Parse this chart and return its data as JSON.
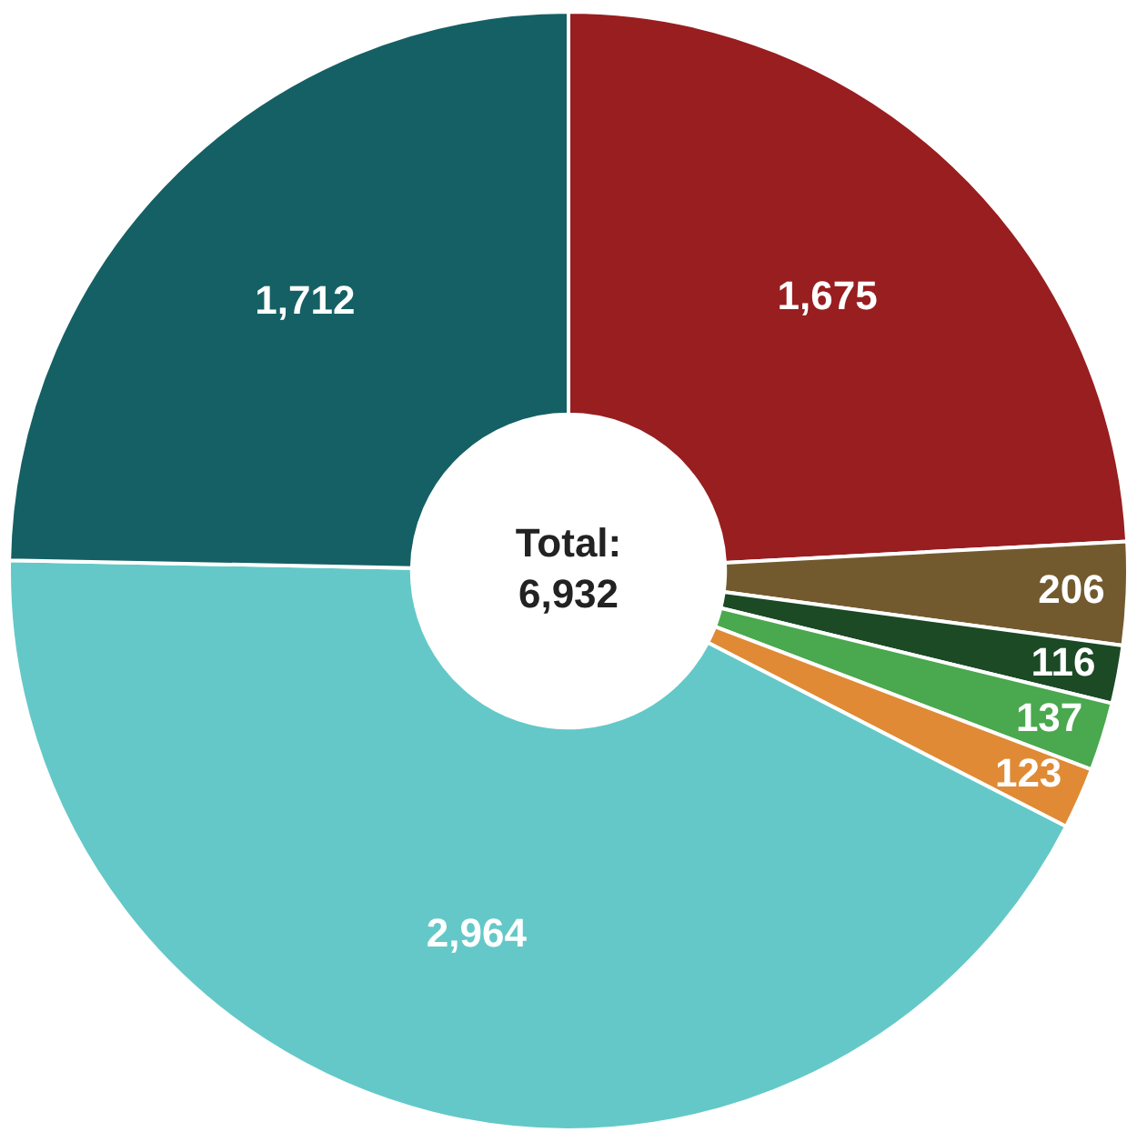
{
  "chart_data": {
    "type": "donut",
    "categories": [
      null,
      null,
      null,
      null,
      null,
      null,
      null
    ],
    "values": [
      1675,
      206,
      116,
      137,
      123,
      2964,
      1712
    ],
    "colors": [
      "#981e20",
      "#735a2e",
      "#1b4a25",
      "#4aa84e",
      "#e08a35",
      "#64c8c8",
      "#156064"
    ],
    "value_labels": [
      "1,675",
      "206",
      "116",
      "137",
      "123",
      "2,964",
      "1,712"
    ],
    "annotations": [
      "Total:",
      "6,932"
    ],
    "legend": false
  }
}
